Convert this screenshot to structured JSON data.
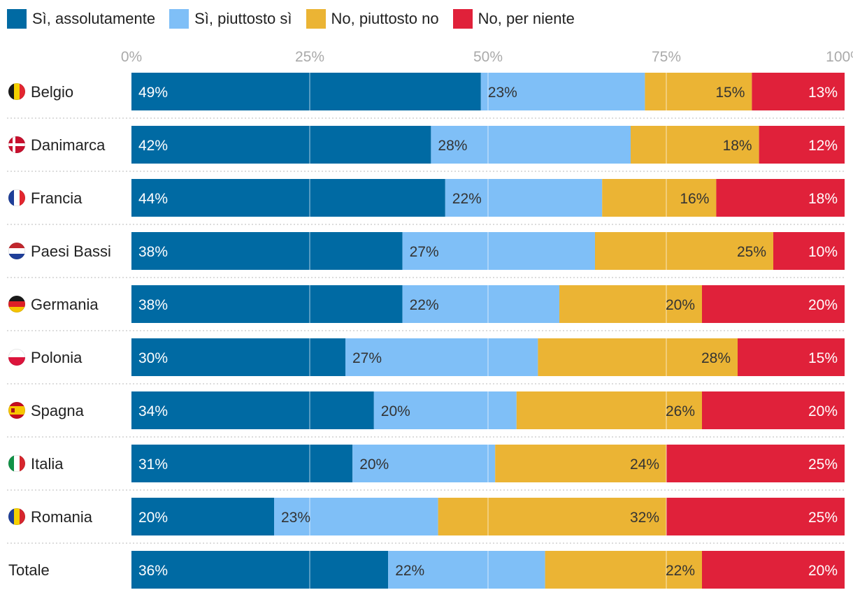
{
  "colors": {
    "series": [
      "#006aa3",
      "#7fbff7",
      "#ebb434",
      "#e0213a"
    ],
    "label_dark": "#333333",
    "label_light": "#ffffff",
    "tick": "#aaaaaa",
    "grid": "#ffffff"
  },
  "chart_data": {
    "type": "bar",
    "orientation": "horizontal",
    "stacked": true,
    "xlim": [
      0,
      100
    ],
    "x_ticks": [
      "0%",
      "25%",
      "50%",
      "75%",
      "100%"
    ],
    "legend_position": "top-left",
    "categories": [
      "Belgio",
      "Danimarca",
      "Francia",
      "Paesi Bassi",
      "Germania",
      "Polonia",
      "Spagna",
      "Italia",
      "Romania",
      "Totale"
    ],
    "flags": [
      "flag-belgium-icon",
      "flag-denmark-icon",
      "flag-france-icon",
      "flag-netherlands-icon",
      "flag-germany-icon",
      "flag-poland-icon",
      "flag-spain-icon",
      "flag-italy-icon",
      "flag-romania-icon",
      ""
    ],
    "series": [
      {
        "name": "Sì, assolutamente",
        "values": [
          49,
          42,
          44,
          38,
          38,
          30,
          34,
          31,
          20,
          36
        ],
        "labels": [
          "49%",
          "42%",
          "44%",
          "38%",
          "38%",
          "30%",
          "34%",
          "31%",
          "20%",
          "36%"
        ]
      },
      {
        "name": "Sì, piuttosto sì",
        "values": [
          23,
          28,
          22,
          27,
          22,
          27,
          20,
          20,
          23,
          22
        ],
        "labels": [
          "23%",
          "28%",
          "22%",
          "27%",
          "22%",
          "27%",
          "20%",
          "20%",
          "23%",
          "22%"
        ]
      },
      {
        "name": "No, piuttosto no",
        "values": [
          15,
          18,
          16,
          25,
          20,
          28,
          26,
          24,
          32,
          22
        ],
        "labels": [
          "15%",
          "18%",
          "16%",
          "25%",
          "20%",
          "28%",
          "26%",
          "24%",
          "32%",
          "22%"
        ]
      },
      {
        "name": "No, per niente",
        "values": [
          13,
          12,
          18,
          10,
          20,
          15,
          20,
          25,
          25,
          20
        ],
        "labels": [
          "13%",
          "12%",
          "18%",
          "10%",
          "20%",
          "15%",
          "20%",
          "25%",
          "25%",
          "20%"
        ]
      }
    ]
  }
}
